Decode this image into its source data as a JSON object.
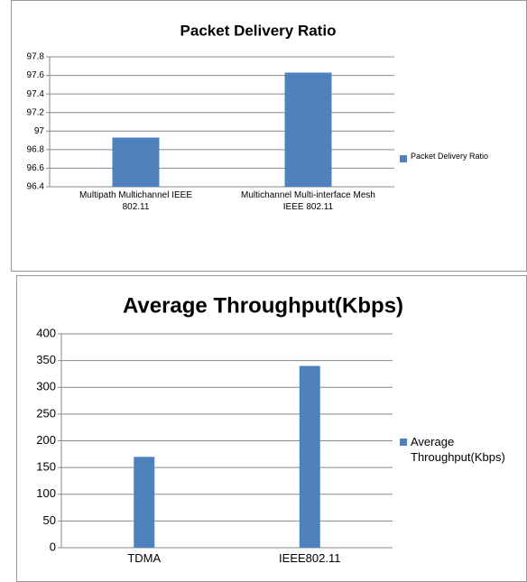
{
  "chart_data": [
    {
      "type": "bar",
      "title": "Packet Delivery Ratio",
      "categories": [
        "Multipath Multichannel IEEE 802.11",
        "Multichannel Multi-interface Mesh IEEE 802.11"
      ],
      "series": [
        {
          "name": "Packet Delivery Ratio",
          "color": "#4f81bd",
          "values": [
            96.93,
            97.63
          ]
        }
      ],
      "ylim": [
        96.4,
        97.8
      ],
      "yticks": [
        96.4,
        96.6,
        96.8,
        97,
        97.2,
        97.4,
        97.6,
        97.8
      ],
      "grid": true,
      "legend": "right"
    },
    {
      "type": "bar",
      "title": "Average Throughput(Kbps)",
      "categories": [
        "TDMA",
        "IEEE802.11"
      ],
      "series": [
        {
          "name": "Average Throughput(Kbps)",
          "color": "#4f81bd",
          "values": [
            170,
            340
          ]
        }
      ],
      "ylim": [
        0,
        400
      ],
      "yticks": [
        0,
        50,
        100,
        150,
        200,
        250,
        300,
        350,
        400
      ],
      "grid": true,
      "legend": "right"
    }
  ]
}
